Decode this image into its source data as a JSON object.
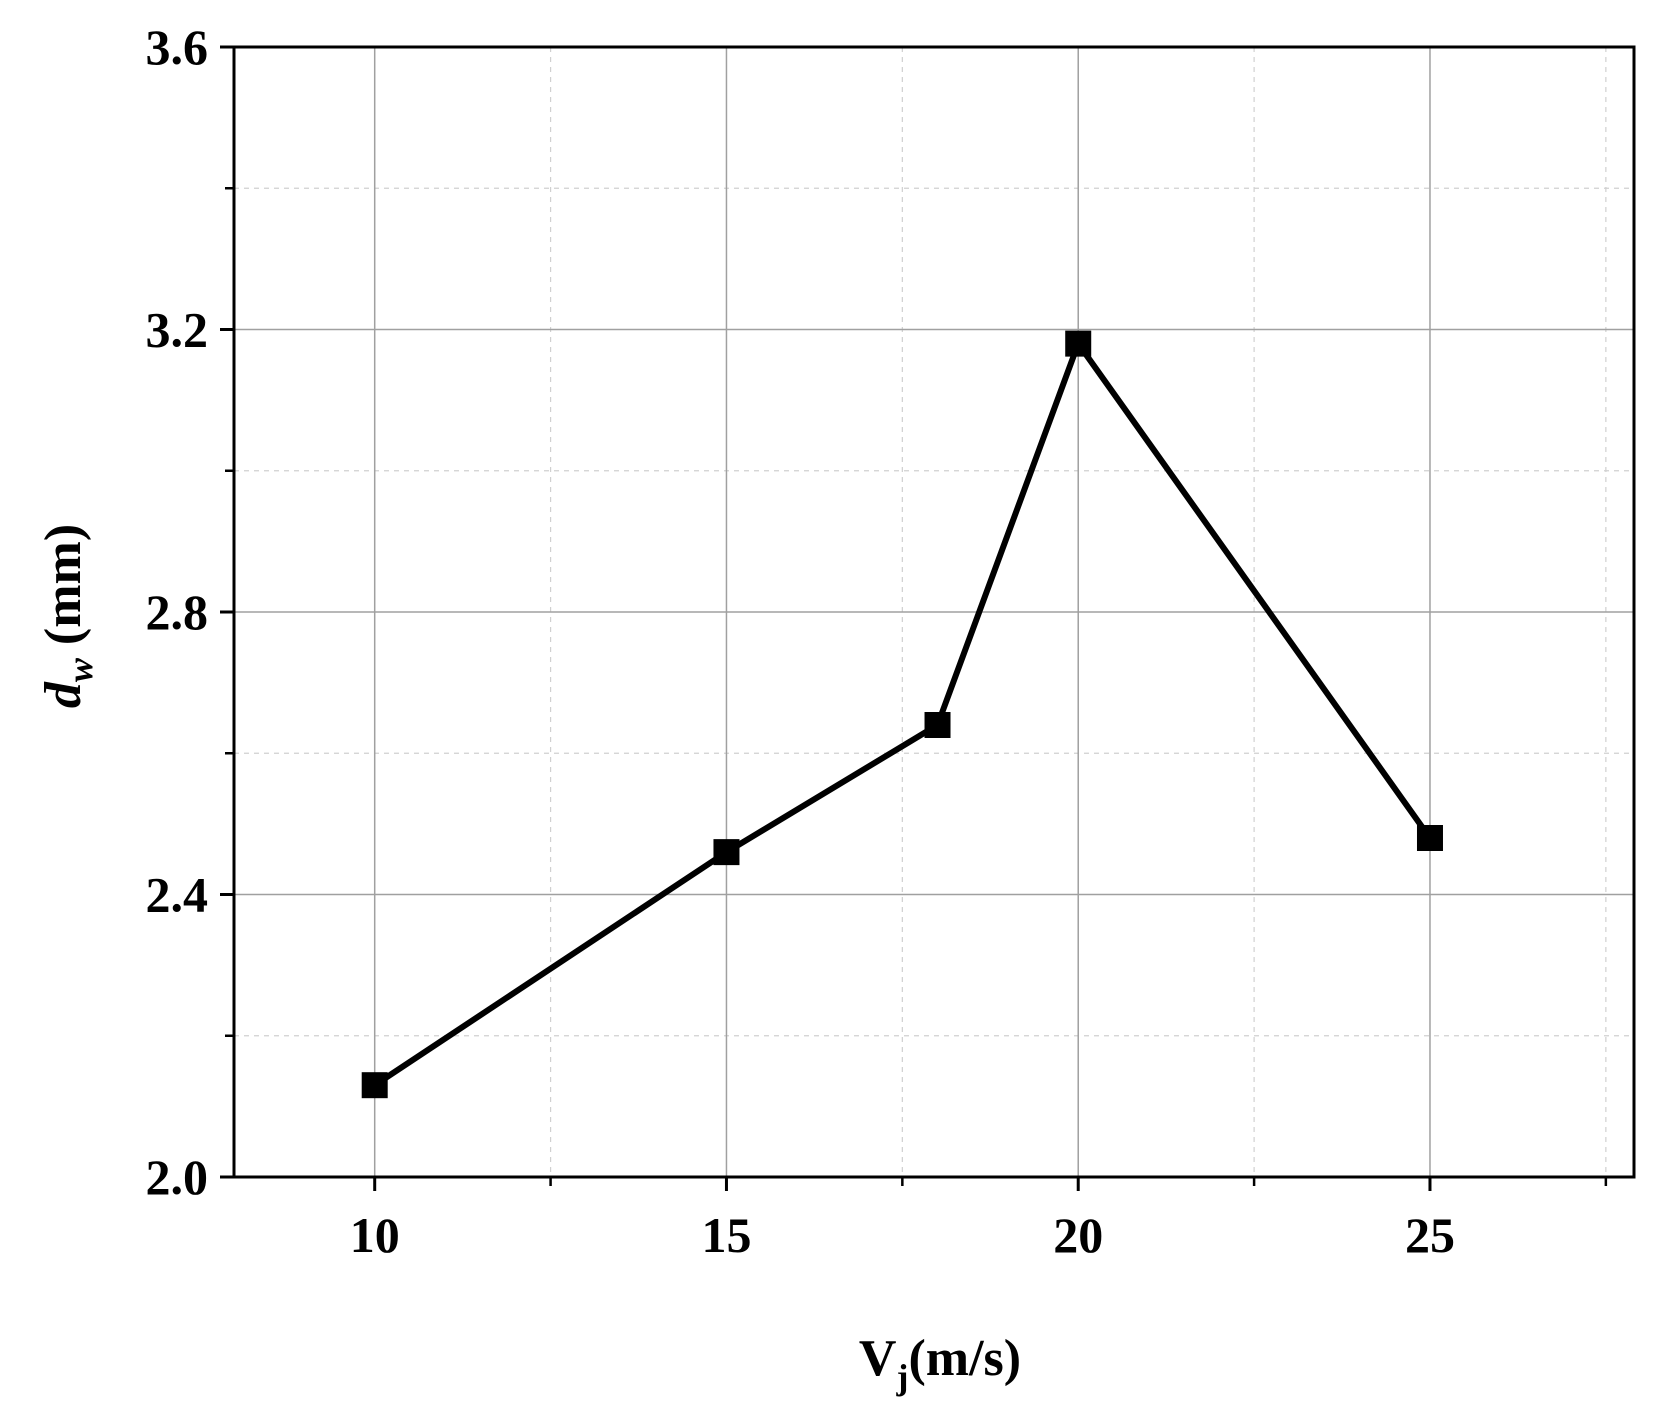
{
  "chart_data": {
    "type": "line",
    "title": "",
    "xlabel": {
      "main": "V",
      "sub": "j",
      "rest": "(m/s)"
    },
    "ylabel": {
      "main": "d",
      "sub": "w",
      "rest": " (mm)"
    },
    "x_ticks": [
      10,
      15,
      20,
      25
    ],
    "y_ticks": [
      "2.0",
      "2.4",
      "2.8",
      "3.2",
      "3.6"
    ],
    "xlim": [
      8,
      27.9
    ],
    "ylim": [
      2.0,
      3.6
    ],
    "x_minor_ticks": [
      12.5,
      17.5,
      22.5,
      27.5
    ],
    "y_minor_ticks": [
      2.2,
      2.6,
      3.0,
      3.4
    ],
    "grid": true,
    "legend": "none",
    "series": [
      {
        "x": [
          10,
          15,
          18,
          20,
          25
        ],
        "y": [
          2.13,
          2.46,
          2.64,
          3.18,
          2.48
        ],
        "color": "#000000",
        "marker": "square"
      }
    ]
  }
}
